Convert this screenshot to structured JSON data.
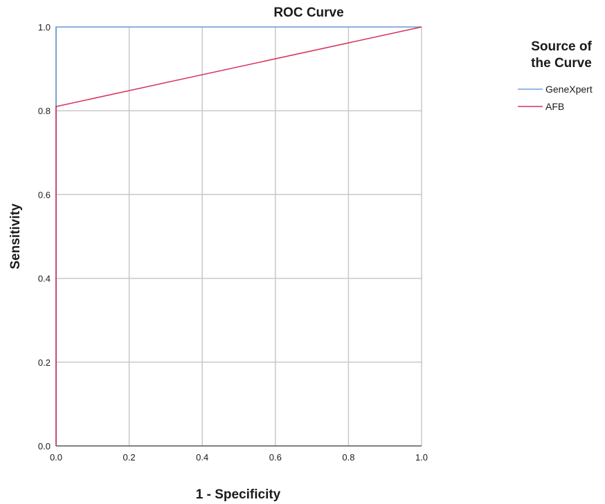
{
  "chart_data": {
    "type": "line",
    "title": "ROC Curve",
    "xlabel": "1 - Specificity",
    "ylabel": "Sensitivity",
    "xlim": [
      0.0,
      1.0
    ],
    "ylim": [
      0.0,
      1.0
    ],
    "x_ticks": [
      "0.0",
      "0.2",
      "0.4",
      "0.6",
      "0.8",
      "1.0"
    ],
    "y_ticks": [
      "0.0",
      "0.2",
      "0.4",
      "0.6",
      "0.8",
      "1.0"
    ],
    "grid": true,
    "legend": {
      "title_line1": "Source of",
      "title_line2": "the Curve",
      "placement": "right"
    },
    "series": [
      {
        "name": "GeneXpert",
        "color": "#6f9fe0",
        "points": [
          [
            0.0,
            0.0
          ],
          [
            0.0,
            1.0
          ],
          [
            1.0,
            1.0
          ]
        ]
      },
      {
        "name": "AFB",
        "color": "#d6305a",
        "points": [
          [
            0.0,
            0.0
          ],
          [
            0.0,
            0.81
          ],
          [
            1.0,
            1.0
          ]
        ]
      }
    ]
  }
}
